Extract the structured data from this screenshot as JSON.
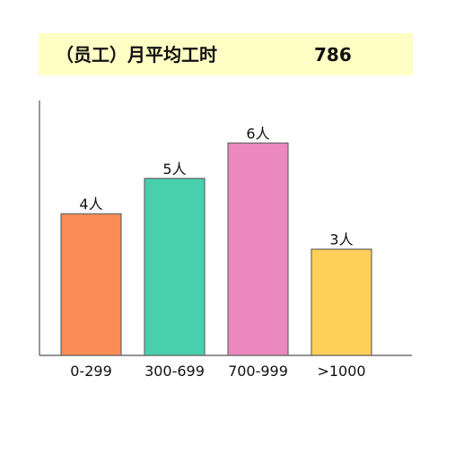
{
  "header": {
    "title": "（员工）月平均工时",
    "value": "786"
  },
  "colors": {
    "banner_bg": "#ffffc5",
    "axis": "#555555",
    "bar_stroke": "#666666"
  },
  "chart_data": {
    "type": "bar",
    "categories": [
      "0-299",
      "300-699",
      "700-999",
      ">1000"
    ],
    "values": [
      4,
      5,
      6,
      3
    ],
    "data_labels": [
      "4人",
      "5人",
      "6人",
      "3人"
    ],
    "bar_colors": [
      "#fa8c55",
      "#48d0ae",
      "#eb89be",
      "#ffcf58"
    ],
    "title": "",
    "xlabel": "",
    "ylabel": "",
    "ylim": [
      0,
      7.2
    ],
    "grid": false,
    "legend": "none"
  }
}
